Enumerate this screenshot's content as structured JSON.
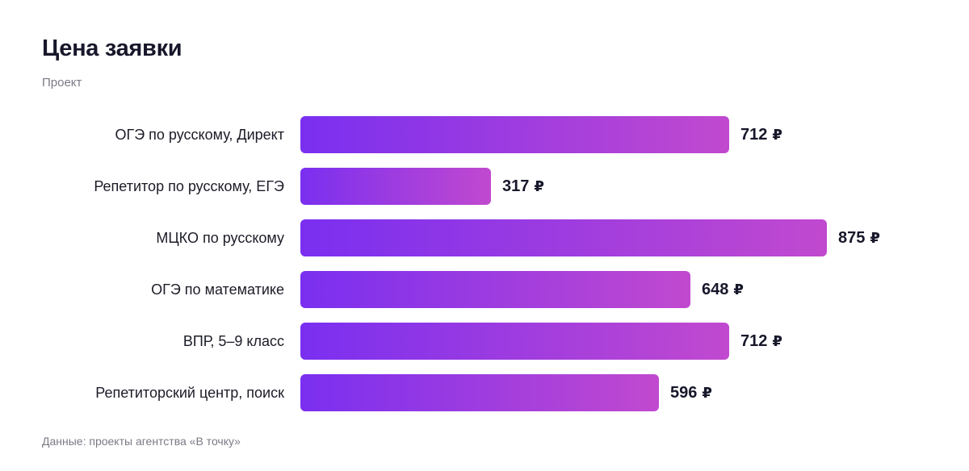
{
  "chart_data": {
    "type": "bar",
    "orientation": "horizontal",
    "title": "Цена заявки",
    "subtitle": "Проект",
    "categories": [
      "ОГЭ по русскому, Директ",
      "Репетитор по русскому, ЕГЭ",
      "МЦКО по русскому",
      "ОГЭ по математике",
      "ВПР, 5–9 класс",
      "Репетиторский центр, поиск"
    ],
    "values": [
      712,
      317,
      875,
      648,
      712,
      596
    ],
    "value_unit": "₽",
    "xlim": [
      0,
      875
    ],
    "grid": false,
    "colors": {
      "bar_start": "#7a2ff0",
      "bar_end": "#c149cf"
    },
    "source": "Данные: проекты агентства «В точку»"
  }
}
